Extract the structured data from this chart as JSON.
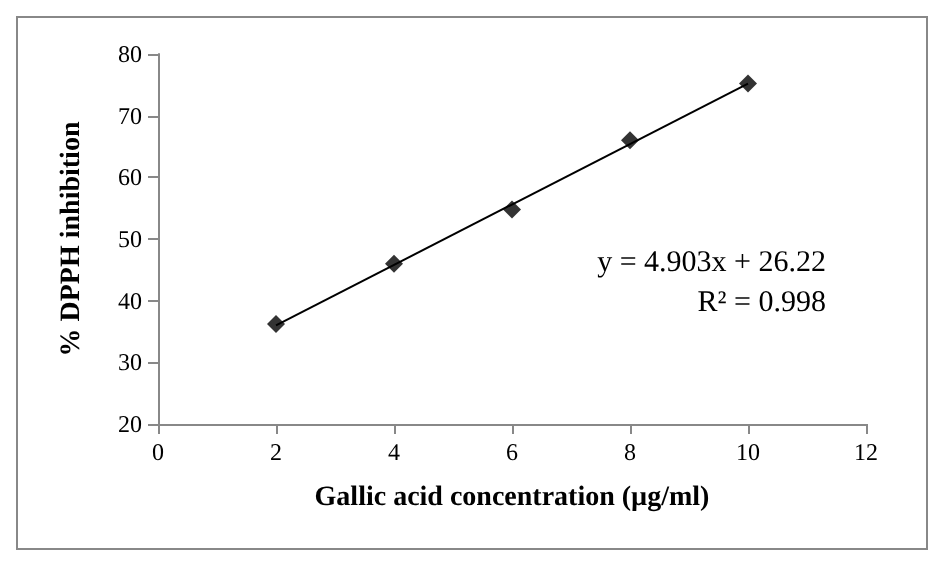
{
  "chart_data": {
    "type": "scatter",
    "xlabel": "Gallic acid concentration (µg/ml)",
    "ylabel": "% DPPH inhibition",
    "xlim": [
      0,
      12
    ],
    "xticks": [
      0,
      2,
      4,
      6,
      8,
      10,
      12
    ],
    "ylim": [
      20,
      80
    ],
    "yticks": [
      20,
      30,
      40,
      50,
      60,
      70,
      80
    ],
    "series": [
      {
        "type": "scatter",
        "color": "#000000",
        "marker": "diamond",
        "x": [
          2,
          4,
          6,
          8,
          10
        ],
        "values": [
          36.2,
          46,
          54.8,
          66,
          75.2
        ]
      },
      {
        "type": "line",
        "color": "#000000",
        "marker": "none",
        "line_style": "solid",
        "x": [
          2,
          10
        ],
        "values": [
          36,
          75.2
        ]
      }
    ],
    "annotations": [
      "y = 4.903x + 26.22",
      "R² = 0.998"
    ],
    "grid": false
  }
}
